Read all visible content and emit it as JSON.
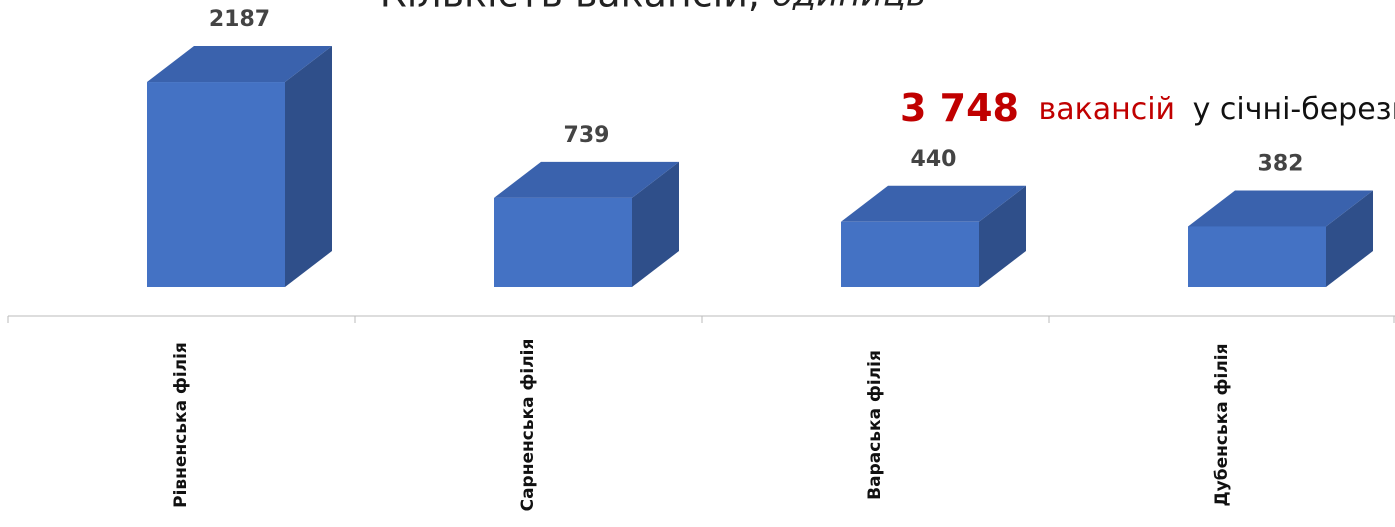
{
  "chart_data": {
    "type": "bar3d",
    "title": "Кількість вакансій,",
    "subtitle": "одиниць",
    "annotation": {
      "number": "3 748",
      "word": "вакансій",
      "rest": "у січні-березн"
    },
    "categories": [
      "Рівненська філія",
      "Сарненська філія",
      "Вараська філія",
      "Дубенська філія"
    ],
    "values": [
      2187,
      739,
      440,
      382
    ],
    "color": "#4472c4",
    "side_color": "#2f4f8a",
    "top_color": "#3a62ad"
  }
}
